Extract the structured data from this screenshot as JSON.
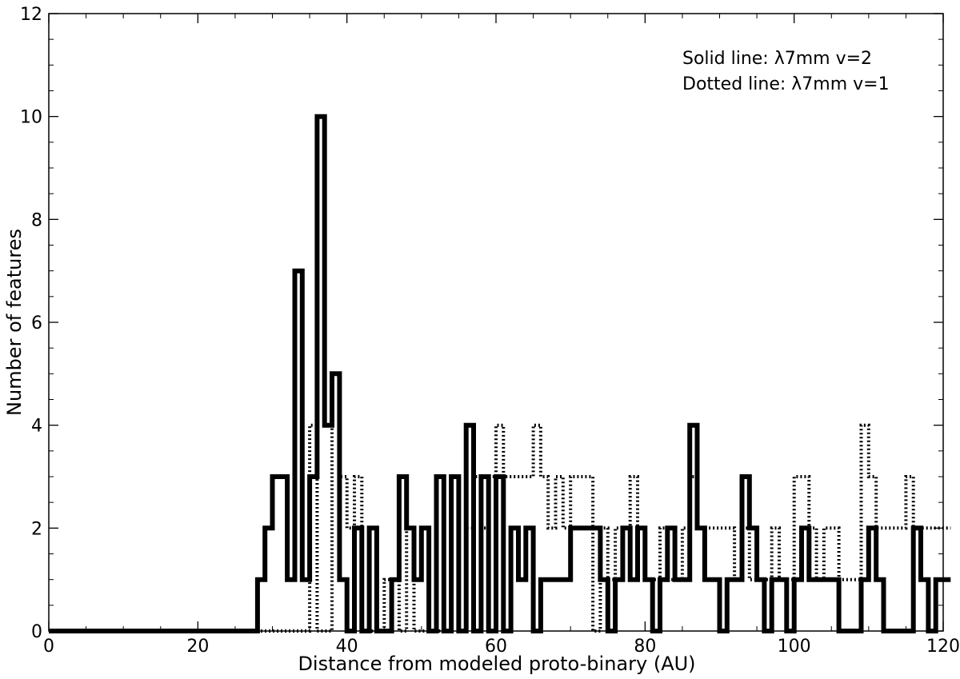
{
  "chart_data": {
    "type": "histogram-step",
    "xlabel": "Distance from modeled proto-binary (AU)",
    "ylabel": "Number of features",
    "xlim": [
      0,
      120
    ],
    "ylim": [
      0,
      12
    ],
    "xticks": [
      0,
      20,
      40,
      60,
      80,
      100,
      120
    ],
    "yticks": [
      0,
      2,
      4,
      6,
      8,
      10,
      12
    ],
    "grid": false,
    "legend_position": "top-right",
    "legend": [
      "Solid line: λ7mm v=2",
      "Dotted line: λ7mm v=1"
    ],
    "bin_width": 1,
    "series": [
      {
        "name": "λ7mm v=2",
        "style": "solid",
        "color": "#000000",
        "bin_start": 0,
        "counts": [
          0,
          0,
          0,
          0,
          0,
          0,
          0,
          0,
          0,
          0,
          0,
          0,
          0,
          0,
          0,
          0,
          0,
          0,
          0,
          0,
          0,
          0,
          0,
          0,
          0,
          0,
          0,
          0,
          1,
          2,
          3,
          3,
          1,
          7,
          1,
          3,
          10,
          4,
          5,
          1,
          0,
          2,
          0,
          2,
          0,
          0,
          1,
          3,
          2,
          1,
          2,
          0,
          3,
          0,
          3,
          0,
          4,
          0,
          3,
          0,
          3,
          0,
          2,
          1,
          2,
          0,
          1,
          1,
          1,
          1,
          2,
          2,
          2,
          2,
          1,
          0,
          1,
          2,
          1,
          2,
          1,
          0,
          1,
          2,
          1,
          1,
          4,
          2,
          1,
          1,
          0,
          1,
          1,
          3,
          2,
          1,
          0,
          1,
          1,
          0,
          1,
          2,
          1,
          1,
          1,
          1,
          0,
          0,
          0,
          1,
          2,
          1,
          0,
          0,
          0,
          0,
          2,
          1,
          0,
          1,
          1
        ]
      },
      {
        "name": "λ7mm v=1",
        "style": "dotted",
        "color": "#000000",
        "bin_start": 0,
        "counts": [
          0,
          0,
          0,
          0,
          0,
          0,
          0,
          0,
          0,
          0,
          0,
          0,
          0,
          0,
          0,
          0,
          0,
          0,
          0,
          0,
          0,
          0,
          0,
          0,
          0,
          0,
          0,
          0,
          0,
          0,
          0,
          0,
          0,
          0,
          0,
          4,
          0,
          0,
          5,
          3,
          2,
          3,
          0,
          0,
          0,
          1,
          1,
          0,
          2,
          0,
          0,
          0,
          0,
          0,
          3,
          0,
          2,
          3,
          2,
          3,
          4,
          3,
          3,
          3,
          3,
          4,
          3,
          2,
          3,
          2,
          3,
          3,
          3,
          0,
          2,
          1,
          2,
          2,
          3,
          2,
          1,
          1,
          2,
          1,
          1,
          2,
          3,
          2,
          2,
          2,
          2,
          2,
          1,
          2,
          1,
          1,
          1,
          2,
          1,
          1,
          3,
          3,
          2,
          1,
          2,
          2,
          1,
          1,
          1,
          4,
          3,
          2,
          2,
          2,
          2,
          3,
          2,
          2,
          2,
          2,
          2
        ]
      }
    ]
  }
}
